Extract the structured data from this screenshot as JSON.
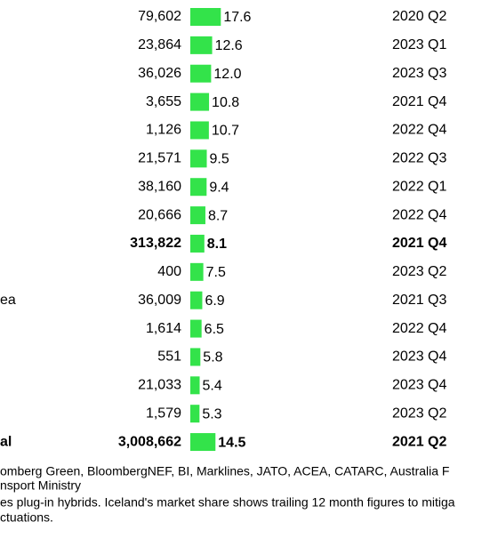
{
  "table": {
    "bar_color": "#33e34a",
    "rows": [
      {
        "name": null,
        "count": "79,602",
        "share": 17.6,
        "quarter": "2020 Q2",
        "bold": false
      },
      {
        "name": null,
        "count": "23,864",
        "share": 12.6,
        "quarter": "2023 Q1",
        "bold": false
      },
      {
        "name": null,
        "count": "36,026",
        "share": 12.0,
        "share_label": "12.0",
        "quarter": "2023 Q3",
        "bold": false
      },
      {
        "name": null,
        "count": "3,655",
        "share": 10.8,
        "quarter": "2021 Q4",
        "bold": false
      },
      {
        "name": null,
        "count": "1,126",
        "share": 10.7,
        "quarter": "2022 Q4",
        "bold": false
      },
      {
        "name": null,
        "count": "21,571",
        "share": 9.5,
        "quarter": "2022 Q3",
        "bold": false
      },
      {
        "name": null,
        "count": "38,160",
        "share": 9.4,
        "quarter": "2022 Q1",
        "bold": false
      },
      {
        "name": null,
        "count": "20,666",
        "share": 8.7,
        "quarter": "2022 Q4",
        "bold": false
      },
      {
        "name": null,
        "count": "313,822",
        "share": 8.1,
        "quarter": "2021 Q4",
        "bold": true
      },
      {
        "name": null,
        "count": "400",
        "share": 7.5,
        "quarter": "2023 Q2",
        "bold": false
      },
      {
        "name": "ea",
        "count": "36,009",
        "share": 6.9,
        "quarter": "2021 Q3",
        "bold": false
      },
      {
        "name": null,
        "count": "1,614",
        "share": 6.5,
        "quarter": "2022 Q4",
        "bold": false
      },
      {
        "name": null,
        "count": "551",
        "share": 5.8,
        "quarter": "2023 Q4",
        "bold": false
      },
      {
        "name": null,
        "count": "21,033",
        "share": 5.4,
        "quarter": "2023 Q4",
        "bold": false
      },
      {
        "name": null,
        "count": "1,579",
        "share": 5.3,
        "quarter": "2023 Q2",
        "bold": false
      },
      {
        "name": "al",
        "count": "3,008,662",
        "share": 14.5,
        "quarter": "2021 Q2",
        "bold": true
      }
    ]
  },
  "footer": {
    "lines": [
      "omberg Green, BloombergNEF, BI, Marklines, JATO, ACEA, CATARC, Australia F",
      "nsport Ministry",
      "es plug-in hybrids. Iceland's market share shows trailing 12 month figures to mitiga",
      "ctuations."
    ]
  }
}
